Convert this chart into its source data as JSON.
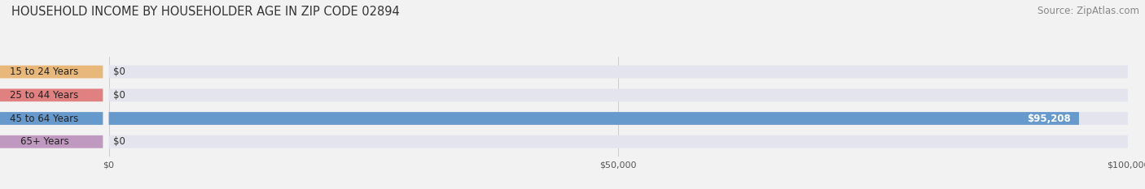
{
  "title": "HOUSEHOLD INCOME BY HOUSEHOLDER AGE IN ZIP CODE 02894",
  "source": "Source: ZipAtlas.com",
  "categories": [
    "15 to 24 Years",
    "25 to 44 Years",
    "45 to 64 Years",
    "65+ Years"
  ],
  "values": [
    0,
    0,
    95208,
    0
  ],
  "bar_colors": [
    "#e8b87a",
    "#e08080",
    "#6699cc",
    "#c099c0"
  ],
  "xlim": [
    0,
    100000
  ],
  "xticks": [
    0,
    50000,
    100000
  ],
  "xtick_labels": [
    "$0",
    "$50,000",
    "$100,000"
  ],
  "background_color": "#f2f2f2",
  "bar_bg_color": "#e4e4ee",
  "title_fontsize": 10.5,
  "source_fontsize": 8.5,
  "label_fontsize": 8.5,
  "bar_height": 0.55,
  "value_95208_label": "$95,208"
}
